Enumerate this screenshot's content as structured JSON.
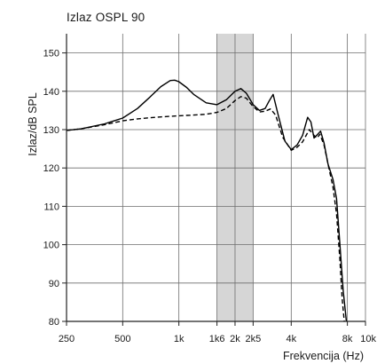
{
  "chart_data": {
    "type": "line",
    "title": "Izlaz OSPL 90",
    "xlabel": "Frekvencija (Hz)",
    "ylabel": "Izlaz/dB SPL",
    "x_scale": "log",
    "xlim": [
      250,
      10000
    ],
    "ylim": [
      80,
      155
    ],
    "yticks": [
      80,
      90,
      100,
      110,
      120,
      130,
      140,
      150
    ],
    "xticks": [
      {
        "value": 250,
        "label": "250"
      },
      {
        "value": 500,
        "label": "500"
      },
      {
        "value": 1000,
        "label": "1k"
      },
      {
        "value": 1600,
        "label": "1k6"
      },
      {
        "value": 2000,
        "label": "2k"
      },
      {
        "value": 2500,
        "label": "2k5"
      },
      {
        "value": 4000,
        "label": "4k"
      },
      {
        "value": 8000,
        "label": "8k"
      },
      {
        "value": 10000,
        "label": "10k"
      }
    ],
    "grid": true,
    "highlight_band": {
      "x": [
        1600,
        2500
      ],
      "color": "#d6d6d6"
    },
    "series": [
      {
        "style": "solid",
        "color": "#000000",
        "x": [
          250,
          300,
          400,
          500,
          600,
          700,
          800,
          900,
          950,
          1000,
          1100,
          1200,
          1400,
          1600,
          1800,
          2000,
          2150,
          2300,
          2500,
          2700,
          2900,
          3050,
          3200,
          3400,
          3700,
          4000,
          4300,
          4600,
          4900,
          5100,
          5300,
          5500,
          5750,
          6000,
          6300,
          6700,
          7000,
          7300,
          7600,
          7900
        ],
        "values": [
          129.8,
          130.2,
          131.5,
          133.0,
          135.5,
          138.5,
          141.2,
          142.8,
          142.9,
          142.5,
          141.0,
          139.2,
          137.0,
          136.5,
          137.8,
          140.0,
          140.7,
          139.5,
          136.5,
          135.0,
          135.5,
          137.5,
          139.2,
          134.0,
          127.0,
          124.8,
          126.0,
          128.5,
          133.2,
          132.0,
          127.8,
          128.6,
          129.6,
          126.5,
          121.0,
          117.0,
          112.0,
          100.0,
          88.0,
          80.0
        ]
      },
      {
        "style": "dashed",
        "color": "#000000",
        "x": [
          250,
          300,
          400,
          500,
          600,
          700,
          800,
          1000,
          1200,
          1400,
          1600,
          1800,
          2000,
          2150,
          2300,
          2500,
          2700,
          2900,
          3100,
          3300,
          3600,
          4000,
          4300,
          4600,
          5000,
          5300,
          5500,
          5700,
          6000,
          6300,
          6700,
          7000,
          7300,
          7500,
          7700
        ],
        "values": [
          129.8,
          130.2,
          131.3,
          132.3,
          132.8,
          133.1,
          133.3,
          133.6,
          133.8,
          134.0,
          134.5,
          135.5,
          137.6,
          138.6,
          138.2,
          136.0,
          134.6,
          134.8,
          135.4,
          133.8,
          128.0,
          124.6,
          125.4,
          126.8,
          130.0,
          128.5,
          127.8,
          128.8,
          126.0,
          121.0,
          115.0,
          108.0,
          96.0,
          86.0,
          80.0
        ]
      }
    ]
  }
}
